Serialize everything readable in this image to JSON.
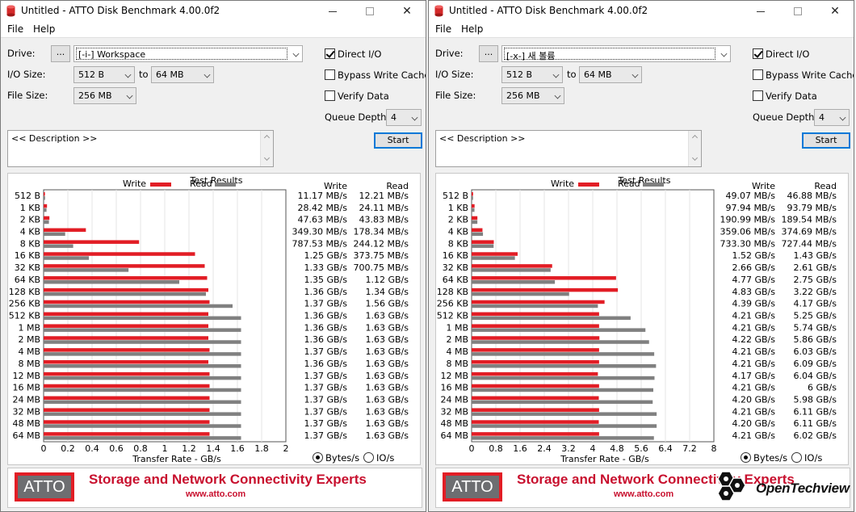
{
  "labels": {
    "menu_file": "File",
    "menu_help": "Help",
    "drive": "Drive:",
    "browse": "...",
    "io_size": "I/O Size:",
    "to": "to",
    "file_size": "File Size:",
    "direct_io": "Direct I/O",
    "bypass_write_cache": "Bypass Write Cache",
    "verify_data": "Verify Data",
    "queue_depth": "Queue Depth:",
    "description": "<< Description >>",
    "start": "Start",
    "test_results": "Test Results",
    "legend_write": "Write",
    "legend_read": "Read",
    "col_write": "Write",
    "col_read": "Read",
    "x_axis_title": "Transfer Rate - GB/s",
    "bytes_per_sec": "Bytes/s",
    "io_per_sec": "IO/s",
    "slogan": "Storage and Network Connectivity Experts",
    "url": "www.atto.com",
    "logo_text": "ATTO"
  },
  "colors": {
    "write": "#e21d25",
    "read": "#808080",
    "accent": "#0078d7"
  },
  "icons": {
    "app": "disk-benchmark-icon",
    "minimize": "minimize-icon",
    "maximize": "maximize-icon",
    "close": "close-icon"
  },
  "watermark": {
    "text": "OpenTechview"
  },
  "windows": [
    {
      "title": "Untitled - ATTO Disk Benchmark 4.00.0f2",
      "drive": "[-i-] Workspace",
      "io_from": "512 B",
      "io_to": "64 MB",
      "file_size": "256 MB",
      "queue_depth": "4",
      "direct_io": true,
      "bypass_write_cache": false,
      "verify_data": false,
      "units": "bytes",
      "chart_data": {
        "type": "bar",
        "title": "Test Results",
        "xlabel": "Transfer Rate - GB/s",
        "xlim": [
          0,
          2
        ],
        "xticks": [
          "0",
          "0.2",
          "0.4",
          "0.6",
          "0.8",
          "1",
          "1.2",
          "1.4",
          "1.6",
          "1.8",
          "2"
        ],
        "categories": [
          "512 B",
          "1 KB",
          "2 KB",
          "4 KB",
          "8 KB",
          "16 KB",
          "32 KB",
          "64 KB",
          "128 KB",
          "256 KB",
          "512 KB",
          "1 MB",
          "2 MB",
          "4 MB",
          "8 MB",
          "12 MB",
          "16 MB",
          "24 MB",
          "32 MB",
          "48 MB",
          "64 MB"
        ],
        "series": [
          {
            "name": "Write",
            "values": [
              0.011,
              0.028,
              0.048,
              0.349,
              0.788,
              1.25,
              1.33,
              1.35,
              1.36,
              1.37,
              1.36,
              1.36,
              1.36,
              1.37,
              1.36,
              1.37,
              1.37,
              1.37,
              1.37,
              1.37,
              1.37
            ],
            "labels": [
              "11.17 MB/s",
              "28.42 MB/s",
              "47.63 MB/s",
              "349.30 MB/s",
              "787.53 MB/s",
              "1.25 GB/s",
              "1.33 GB/s",
              "1.35 GB/s",
              "1.36 GB/s",
              "1.37 GB/s",
              "1.36 GB/s",
              "1.36 GB/s",
              "1.36 GB/s",
              "1.37 GB/s",
              "1.36 GB/s",
              "1.37 GB/s",
              "1.37 GB/s",
              "1.37 GB/s",
              "1.37 GB/s",
              "1.37 GB/s",
              "1.37 GB/s"
            ]
          },
          {
            "name": "Read",
            "values": [
              0.012,
              0.024,
              0.044,
              0.178,
              0.244,
              0.374,
              0.701,
              1.12,
              1.34,
              1.56,
              1.63,
              1.63,
              1.63,
              1.63,
              1.63,
              1.63,
              1.63,
              1.63,
              1.63,
              1.63,
              1.63
            ],
            "labels": [
              "12.21 MB/s",
              "24.11 MB/s",
              "43.83 MB/s",
              "178.34 MB/s",
              "244.12 MB/s",
              "373.75 MB/s",
              "700.75 MB/s",
              "1.12 GB/s",
              "1.34 GB/s",
              "1.56 GB/s",
              "1.63 GB/s",
              "1.63 GB/s",
              "1.63 GB/s",
              "1.63 GB/s",
              "1.63 GB/s",
              "1.63 GB/s",
              "1.63 GB/s",
              "1.63 GB/s",
              "1.63 GB/s",
              "1.63 GB/s",
              "1.63 GB/s"
            ]
          }
        ]
      }
    },
    {
      "title": "Untitled - ATTO Disk Benchmark 4.00.0f2",
      "drive": "[-x-] 새 볼륨",
      "io_from": "512 B",
      "io_to": "64 MB",
      "file_size": "256 MB",
      "queue_depth": "4",
      "direct_io": true,
      "bypass_write_cache": false,
      "verify_data": false,
      "units": "bytes",
      "chart_data": {
        "type": "bar",
        "title": "Test Results",
        "xlabel": "Transfer Rate - GB/s",
        "xlim": [
          0,
          8
        ],
        "xticks": [
          "0",
          "0.8",
          "1.6",
          "2.4",
          "3.2",
          "4",
          "4.8",
          "5.6",
          "6.4",
          "7.2",
          "8"
        ],
        "categories": [
          "512 B",
          "1 KB",
          "2 KB",
          "4 KB",
          "8 KB",
          "16 KB",
          "32 KB",
          "64 KB",
          "128 KB",
          "256 KB",
          "512 KB",
          "1 MB",
          "2 MB",
          "4 MB",
          "8 MB",
          "12 MB",
          "16 MB",
          "24 MB",
          "32 MB",
          "48 MB",
          "64 MB"
        ],
        "series": [
          {
            "name": "Write",
            "values": [
              0.049,
              0.098,
              0.191,
              0.359,
              0.733,
              1.52,
              2.66,
              4.77,
              4.83,
              4.39,
              4.21,
              4.21,
              4.22,
              4.21,
              4.21,
              4.17,
              4.21,
              4.2,
              4.21,
              4.2,
              4.21
            ],
            "labels": [
              "49.07 MB/s",
              "97.94 MB/s",
              "190.99 MB/s",
              "359.06 MB/s",
              "733.30 MB/s",
              "1.52 GB/s",
              "2.66 GB/s",
              "4.77 GB/s",
              "4.83 GB/s",
              "4.39 GB/s",
              "4.21 GB/s",
              "4.21 GB/s",
              "4.22 GB/s",
              "4.21 GB/s",
              "4.21 GB/s",
              "4.17 GB/s",
              "4.21 GB/s",
              "4.20 GB/s",
              "4.21 GB/s",
              "4.20 GB/s",
              "4.21 GB/s"
            ]
          },
          {
            "name": "Read",
            "values": [
              0.047,
              0.094,
              0.19,
              0.375,
              0.727,
              1.43,
              2.61,
              2.75,
              3.22,
              4.17,
              5.25,
              5.74,
              5.86,
              6.03,
              6.09,
              6.04,
              6.0,
              5.98,
              6.11,
              6.11,
              6.02
            ],
            "labels": [
              "46.88 MB/s",
              "93.79 MB/s",
              "189.54 MB/s",
              "374.69 MB/s",
              "727.44 MB/s",
              "1.43 GB/s",
              "2.61 GB/s",
              "2.75 GB/s",
              "3.22 GB/s",
              "4.17 GB/s",
              "5.25 GB/s",
              "5.74 GB/s",
              "5.86 GB/s",
              "6.03 GB/s",
              "6.09 GB/s",
              "6.04 GB/s",
              "6 GB/s",
              "5.98 GB/s",
              "6.11 GB/s",
              "6.11 GB/s",
              "6.02 GB/s"
            ]
          }
        ]
      }
    }
  ]
}
